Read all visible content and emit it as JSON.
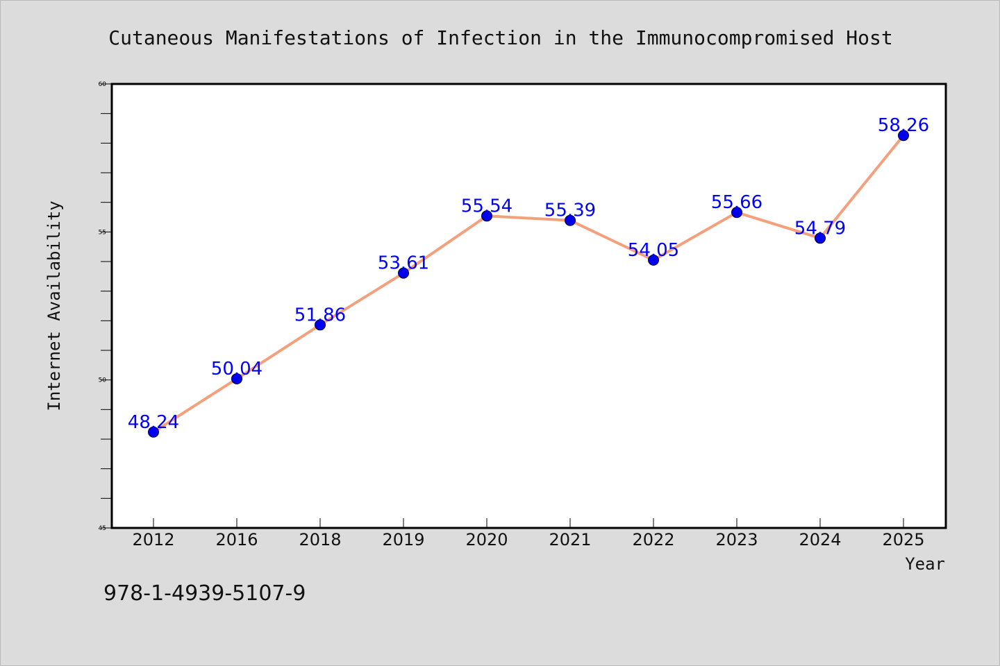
{
  "chart_data": {
    "type": "line",
    "title": "Cutaneous Manifestations of Infection in the Immunocompromised Host",
    "xlabel": "Year",
    "ylabel": "Internet Availability",
    "categories": [
      "2012",
      "2016",
      "2018",
      "2019",
      "2020",
      "2021",
      "2022",
      "2023",
      "2024",
      "2025"
    ],
    "series": [
      {
        "values": [
          48.24,
          50.04,
          51.86,
          53.61,
          55.54,
          55.39,
          54.05,
          55.66,
          54.79,
          58.26
        ],
        "labels": [
          "48.24",
          "50.04",
          "51.86",
          "53.61",
          "55.54",
          "55.39",
          "54.05",
          "55.66",
          "54.79",
          "58.26"
        ]
      }
    ],
    "ylim": [
      45,
      60
    ],
    "yticks": [
      "45",
      "50",
      "55",
      "60"
    ],
    "yminor_step": 1,
    "grid": false,
    "legend": "none",
    "colors": {
      "line": "#f4a07c",
      "marker": "#0000ee",
      "data_label": "#0000ff",
      "background": "#dcdcdc",
      "plot_background": "#ffffff"
    }
  },
  "footer": {
    "isbn": "978-1-4939-5107-9"
  }
}
